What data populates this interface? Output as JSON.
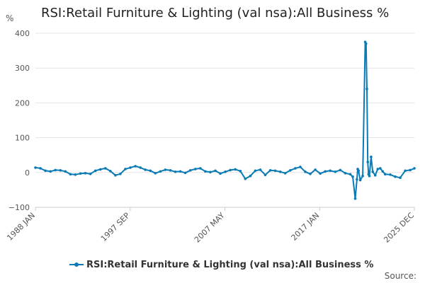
{
  "chart_data": {
    "type": "line",
    "title": "RSI:Retail Furniture & Lighting (val nsa):All Business %",
    "ylabel": "%",
    "xlabel": "",
    "ylim": [
      -100,
      400
    ],
    "yticks": [
      "400",
      "300",
      "200",
      "100",
      "0",
      "−100"
    ],
    "xticks": [
      "1988 JAN",
      "1997 SEP",
      "2007 MAY",
      "2017 JAN",
      "2025 DEC"
    ],
    "x_range": [
      "1988-01",
      "2025-12"
    ],
    "grid": true,
    "legend_position": "bottom",
    "color": "#0a7bb5",
    "series": [
      {
        "name": "RSI:Retail Furniture & Lighting (val nsa):All Business %",
        "x": [
          "1988-01",
          "1988-07",
          "1989-01",
          "1989-07",
          "1990-01",
          "1990-07",
          "1991-01",
          "1991-07",
          "1992-01",
          "1992-07",
          "1993-01",
          "1993-07",
          "1994-01",
          "1994-07",
          "1995-01",
          "1995-07",
          "1996-01",
          "1996-07",
          "1997-01",
          "1997-07",
          "1998-01",
          "1998-07",
          "1999-01",
          "1999-07",
          "2000-01",
          "2000-07",
          "2001-01",
          "2001-07",
          "2002-01",
          "2002-07",
          "2003-01",
          "2003-07",
          "2004-01",
          "2004-07",
          "2005-01",
          "2005-07",
          "2006-01",
          "2006-07",
          "2007-01",
          "2007-07",
          "2008-01",
          "2008-07",
          "2009-01",
          "2009-07",
          "2010-01",
          "2010-07",
          "2011-01",
          "2011-07",
          "2012-01",
          "2012-07",
          "2013-01",
          "2013-07",
          "2014-01",
          "2014-07",
          "2015-01",
          "2015-07",
          "2016-01",
          "2016-07",
          "2017-01",
          "2017-07",
          "2018-01",
          "2018-07",
          "2019-01",
          "2019-07",
          "2019-10",
          "2020-01",
          "2020-03",
          "2020-04",
          "2020-05",
          "2020-07",
          "2020-10",
          "2021-01",
          "2021-02",
          "2021-03",
          "2021-04",
          "2021-05",
          "2021-06",
          "2021-08",
          "2021-10",
          "2022-01",
          "2022-04",
          "2022-07",
          "2022-10",
          "2023-01",
          "2023-07",
          "2024-01",
          "2024-07",
          "2025-01",
          "2025-07",
          "2025-12"
        ],
        "values": [
          14,
          12,
          5,
          3,
          7,
          6,
          3,
          -5,
          -6,
          -3,
          -2,
          -4,
          5,
          9,
          12,
          4,
          -8,
          -4,
          10,
          14,
          18,
          14,
          8,
          5,
          -2,
          3,
          8,
          6,
          2,
          3,
          -1,
          6,
          10,
          12,
          3,
          1,
          5,
          -3,
          2,
          7,
          9,
          4,
          -18,
          -10,
          5,
          8,
          -7,
          6,
          5,
          2,
          -2,
          6,
          12,
          16,
          2,
          -4,
          8,
          -3,
          3,
          5,
          2,
          7,
          -2,
          -5,
          -12,
          -75,
          -20,
          10,
          5,
          -22,
          -10,
          375,
          370,
          240,
          30,
          -5,
          -10,
          45,
          2,
          -8,
          10,
          12,
          3,
          -5,
          -6,
          -12,
          -15,
          5,
          7,
          12
        ]
      }
    ]
  },
  "legend": {
    "label": "RSI:Retail Furniture & Lighting (val nsa):All Business %"
  },
  "footer": {
    "source_label": "Source:"
  }
}
